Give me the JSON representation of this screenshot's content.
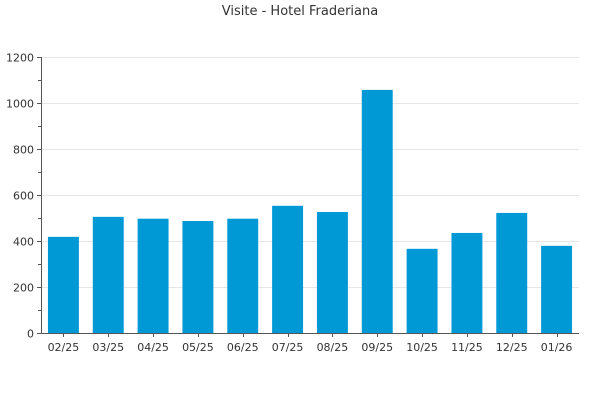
{
  "chart_data": {
    "type": "bar",
    "title": "Visite - Hotel Fraderiana",
    "xlabel": "",
    "ylabel": "",
    "categories": [
      "02/25",
      "03/25",
      "04/25",
      "05/25",
      "06/25",
      "07/25",
      "08/25",
      "09/25",
      "10/25",
      "11/25",
      "12/25",
      "01/26"
    ],
    "values": [
      418,
      505,
      497,
      487,
      497,
      553,
      526,
      1057,
      366,
      435,
      522,
      379
    ],
    "ylim": [
      0,
      1200
    ],
    "yticks": [
      0,
      200,
      400,
      600,
      800,
      1000,
      1200
    ],
    "grid": true,
    "legend": "none",
    "colors": {
      "bar": "#0099d6",
      "grid": "#e6e6e6",
      "axis": "#555555",
      "text": "#333333"
    }
  }
}
